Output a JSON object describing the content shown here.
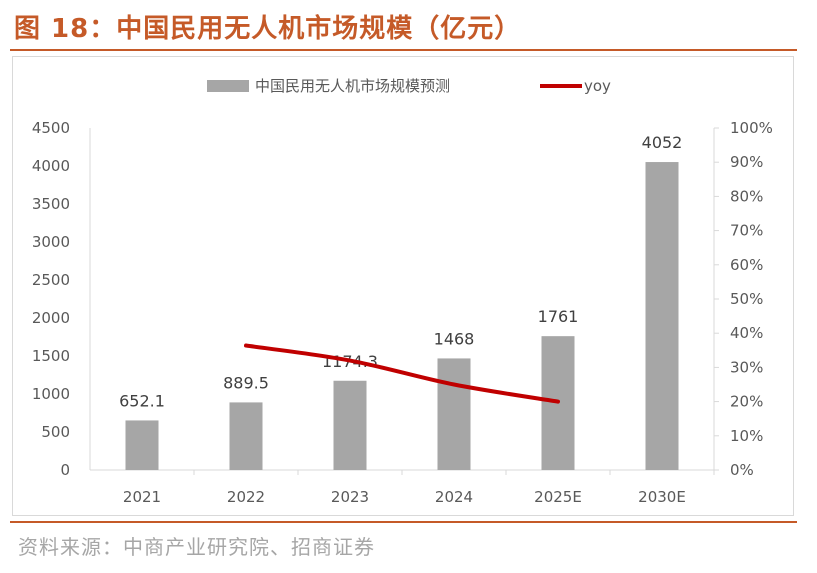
{
  "figure": {
    "title": "图 18：中国民用无人机市场规模（亿元）",
    "source": "资料来源：中商产业研究院、招商证券",
    "accent_color": "#c55a28"
  },
  "chart_data": {
    "type": "bar",
    "categories": [
      "2021",
      "2022",
      "2023",
      "2024",
      "2025E",
      "2030E"
    ],
    "series": [
      {
        "name": "中国民用无人机市场规模预测",
        "type": "bar",
        "axis": "left",
        "color": "#a6a6a6",
        "values": [
          652.1,
          889.5,
          1174.3,
          1468,
          1761,
          4052
        ],
        "labels": [
          "652.1",
          "889.5",
          "1174.3",
          "1468",
          "1761",
          "4052"
        ]
      },
      {
        "name": "yoy",
        "type": "line",
        "axis": "right",
        "color": "#c00000",
        "values": [
          null,
          0.364,
          0.32,
          0.25,
          0.2,
          null
        ]
      }
    ],
    "ylim_left": [
      0,
      4500
    ],
    "yticks_left": [
      "0",
      "500",
      "1000",
      "1500",
      "2000",
      "2500",
      "3000",
      "3500",
      "4000",
      "4500"
    ],
    "ylim_right": [
      0,
      1
    ],
    "yticks_right": [
      "0%",
      "10%",
      "20%",
      "30%",
      "40%",
      "50%",
      "60%",
      "70%",
      "80%",
      "90%",
      "100%"
    ],
    "legend_position": "top",
    "grid": false
  }
}
